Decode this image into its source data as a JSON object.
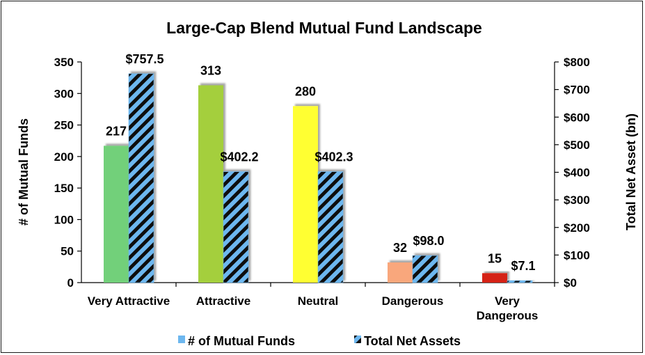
{
  "chart_data": {
    "type": "bar",
    "title": "Large-Cap Blend Mutual Fund Landscape",
    "categories": [
      [
        "Very Attractive"
      ],
      [
        "Attractive"
      ],
      [
        "Neutral"
      ],
      [
        "Dangerous"
      ],
      [
        "Very",
        "Dangerous"
      ]
    ],
    "series": [
      {
        "name": "# of Mutual Funds",
        "axis": "left",
        "values": [
          217,
          313,
          280,
          32,
          15
        ],
        "labels": [
          "217",
          "313",
          "280",
          "32",
          "15"
        ],
        "colors": [
          "#72d07a",
          "#a4cf3e",
          "#ffff33",
          "#f9a77c",
          "#d52314"
        ],
        "legend_color": "#6db7ef"
      },
      {
        "name": "Total Net Assets",
        "axis": "right",
        "values": [
          757.5,
          402.2,
          402.3,
          98.0,
          7.1
        ],
        "labels": [
          "$757.5",
          "$402.2",
          "$402.3",
          "$98.0",
          "$7.1"
        ],
        "pattern": "diagonal-stripes",
        "colors": [
          "#6db7ef",
          "#111111"
        ]
      }
    ],
    "ylabel": "# of Mutual Funds",
    "ylim": [
      0,
      350
    ],
    "yticks": [
      "0",
      "50",
      "100",
      "150",
      "200",
      "250",
      "300",
      "350"
    ],
    "y2label": "Total Net Asset (bn)",
    "y2lim": [
      0,
      800
    ],
    "y2ticks": [
      "$0",
      "$100",
      "$200",
      "$300",
      "$400",
      "$500",
      "$600",
      "$700",
      "$800"
    ],
    "legend_position": "bottom",
    "grid": false
  }
}
